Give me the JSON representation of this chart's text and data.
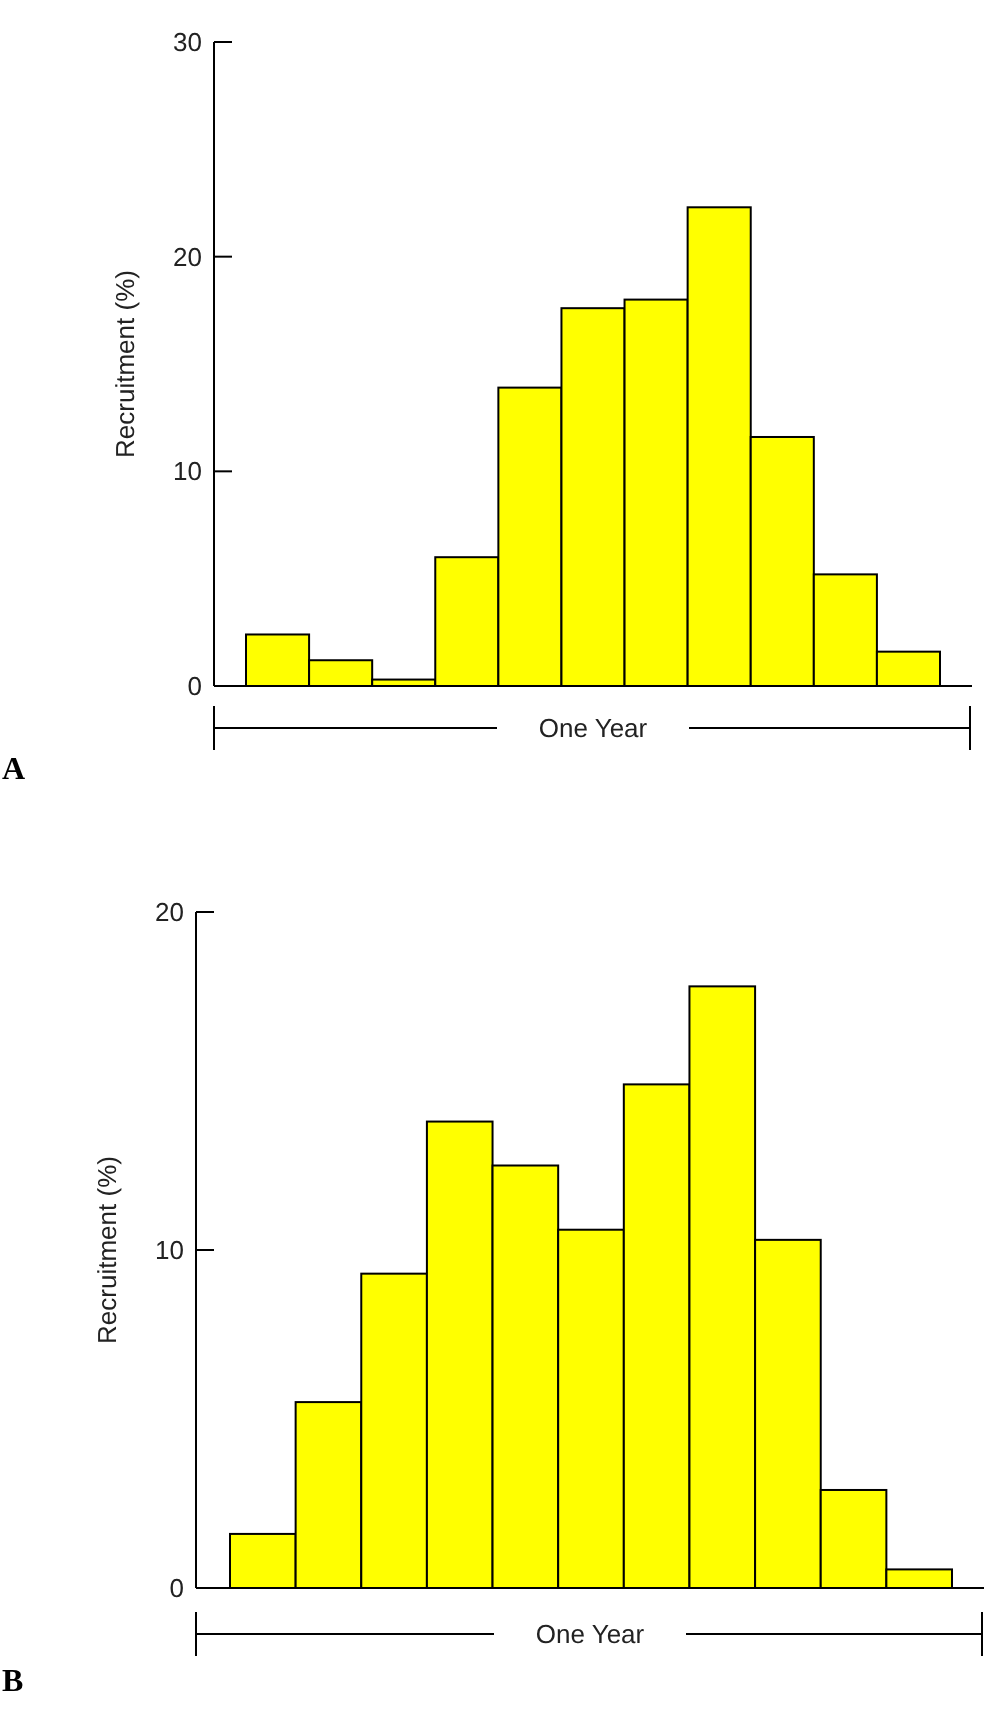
{
  "chart_data": [
    {
      "type": "bar",
      "title": "A",
      "xlabel": "One Year",
      "ylabel": "Recruitment (%)",
      "categories": [
        null,
        null,
        null,
        null,
        null,
        null,
        null,
        null,
        null,
        null,
        null
      ],
      "color": "#ffff00",
      "values": [
        2.4,
        1.2,
        0.3,
        6.0,
        13.9,
        17.6,
        18.0,
        22.3,
        11.6,
        5.2,
        1.6
      ],
      "ylim": [
        0,
        30
      ],
      "yticks": [
        0,
        10,
        20,
        30
      ],
      "grid": false
    },
    {
      "type": "bar",
      "title": "B",
      "xlabel": "One Year",
      "ylabel": "Recruitment (%)",
      "categories": [
        null,
        null,
        null,
        null,
        null,
        null,
        null,
        null,
        null,
        null,
        null
      ],
      "color": "#ffff00",
      "values": [
        1.6,
        5.5,
        9.3,
        13.8,
        12.5,
        10.6,
        14.9,
        17.8,
        10.3,
        2.9,
        0.55
      ],
      "ylim": [
        0,
        20
      ],
      "yticks": [
        0,
        10,
        20
      ],
      "grid": false
    }
  ]
}
